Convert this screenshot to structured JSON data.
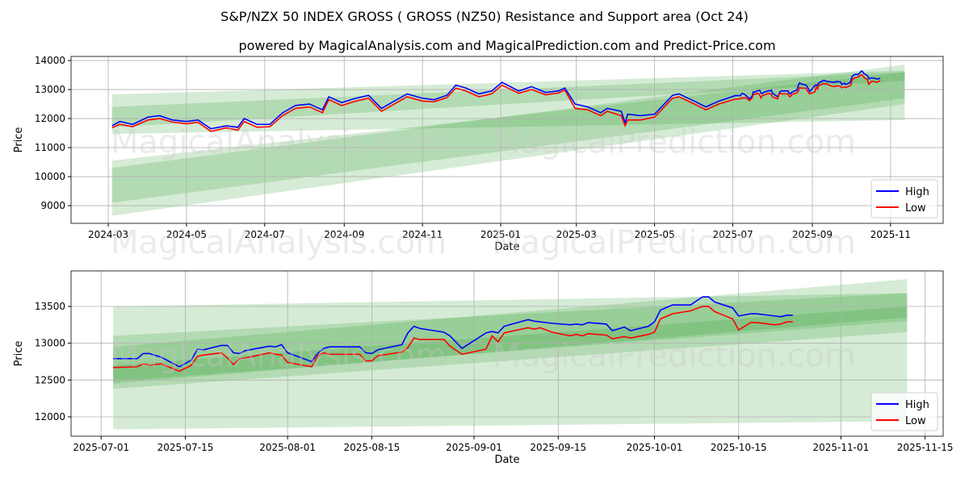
{
  "title": "S&P/NZX 50 INDEX GROSS ( GROSS  (NZ50) Resistance and Support area (Oct 24)",
  "subtitle": "powered by MagicalAnalysis.com and MagicalPrediction.com and Predict-Price.com",
  "watermark": {
    "left": "MagicalAnalysis.com",
    "right": "MagicalPrediction.com"
  },
  "colors": {
    "high": "#0000ff",
    "low": "#ff0000",
    "band": "#2e9a2e"
  },
  "chart_data": {
    "type": "line",
    "legend": {
      "placement": "bottom-right",
      "entries": [
        "High",
        "Low"
      ]
    },
    "series": [
      {
        "date": "2024-03-04",
        "high": 11750,
        "low": 11680
      },
      {
        "date": "2024-03-10",
        "high": 11900,
        "low": 11800
      },
      {
        "date": "2024-03-20",
        "high": 11800,
        "low": 11720
      },
      {
        "date": "2024-04-01",
        "high": 12050,
        "low": 11950
      },
      {
        "date": "2024-04-10",
        "high": 12100,
        "low": 12000
      },
      {
        "date": "2024-04-20",
        "high": 11950,
        "low": 11880
      },
      {
        "date": "2024-05-01",
        "high": 11900,
        "low": 11820
      },
      {
        "date": "2024-05-10",
        "high": 11950,
        "low": 11870
      },
      {
        "date": "2024-05-20",
        "high": 11650,
        "low": 11560
      },
      {
        "date": "2024-06-01",
        "high": 11750,
        "low": 11680
      },
      {
        "date": "2024-06-10",
        "high": 11700,
        "low": 11600
      },
      {
        "date": "2024-06-15",
        "high": 12000,
        "low": 11900
      },
      {
        "date": "2024-06-25",
        "high": 11800,
        "low": 11700
      },
      {
        "date": "2024-07-05",
        "high": 11800,
        "low": 11720
      },
      {
        "date": "2024-07-15",
        "high": 12200,
        "low": 12100
      },
      {
        "date": "2024-07-25",
        "high": 12450,
        "low": 12350
      },
      {
        "date": "2024-08-05",
        "high": 12500,
        "low": 12400
      },
      {
        "date": "2024-08-15",
        "high": 12300,
        "low": 12200
      },
      {
        "date": "2024-08-20",
        "high": 12750,
        "low": 12650
      },
      {
        "date": "2024-08-30",
        "high": 12550,
        "low": 12450
      },
      {
        "date": "2024-09-10",
        "high": 12700,
        "low": 12600
      },
      {
        "date": "2024-09-20",
        "high": 12800,
        "low": 12700
      },
      {
        "date": "2024-09-30",
        "high": 12350,
        "low": 12250
      },
      {
        "date": "2024-10-10",
        "high": 12600,
        "low": 12500
      },
      {
        "date": "2024-10-20",
        "high": 12850,
        "low": 12750
      },
      {
        "date": "2024-11-01",
        "high": 12700,
        "low": 12600
      },
      {
        "date": "2024-11-10",
        "high": 12650,
        "low": 12580
      },
      {
        "date": "2024-11-20",
        "high": 12800,
        "low": 12720
      },
      {
        "date": "2024-11-27",
        "high": 13150,
        "low": 13050
      },
      {
        "date": "2024-12-05",
        "high": 13050,
        "low": 12950
      },
      {
        "date": "2024-12-15",
        "high": 12850,
        "low": 12750
      },
      {
        "date": "2024-12-25",
        "high": 12950,
        "low": 12850
      },
      {
        "date": "2025-01-02",
        "high": 13250,
        "low": 13150
      },
      {
        "date": "2025-01-15",
        "high": 12950,
        "low": 12870
      },
      {
        "date": "2025-01-25",
        "high": 13100,
        "low": 13000
      },
      {
        "date": "2025-02-05",
        "high": 12900,
        "low": 12820
      },
      {
        "date": "2025-02-15",
        "high": 12950,
        "low": 12880
      },
      {
        "date": "2025-02-20",
        "high": 13050,
        "low": 12980
      },
      {
        "date": "2025-02-28",
        "high": 12500,
        "low": 12350
      },
      {
        "date": "2025-03-10",
        "high": 12400,
        "low": 12300
      },
      {
        "date": "2025-03-20",
        "high": 12200,
        "low": 12100
      },
      {
        "date": "2025-03-25",
        "high": 12350,
        "low": 12250
      },
      {
        "date": "2025-04-05",
        "high": 12250,
        "low": 12100
      },
      {
        "date": "2025-04-08",
        "high": 11850,
        "low": 11750
      },
      {
        "date": "2025-04-10",
        "high": 12150,
        "low": 11950
      },
      {
        "date": "2025-04-20",
        "high": 12100,
        "low": 11950
      },
      {
        "date": "2025-05-01",
        "high": 12150,
        "low": 12050
      },
      {
        "date": "2025-05-15",
        "high": 12800,
        "low": 12700
      },
      {
        "date": "2025-05-20",
        "high": 12850,
        "low": 12750
      },
      {
        "date": "2025-06-01",
        "high": 12600,
        "low": 12500
      },
      {
        "date": "2025-06-10",
        "high": 12400,
        "low": 12300
      },
      {
        "date": "2025-06-20",
        "high": 12600,
        "low": 12500
      },
      {
        "date": "2025-07-03",
        "high": 12790,
        "low": 12670
      },
      {
        "date": "2025-07-07",
        "high": 12790,
        "low": 12680
      },
      {
        "date": "2025-07-08",
        "high": 12860,
        "low": 12720
      },
      {
        "date": "2025-07-09",
        "high": 12860,
        "low": 12700
      },
      {
        "date": "2025-07-11",
        "high": 12810,
        "low": 12720
      },
      {
        "date": "2025-07-14",
        "high": 12680,
        "low": 12620
      },
      {
        "date": "2025-07-16",
        "high": 12770,
        "low": 12700
      },
      {
        "date": "2025-07-17",
        "high": 12920,
        "low": 12820
      },
      {
        "date": "2025-07-18",
        "high": 12910,
        "low": 12840
      },
      {
        "date": "2025-07-21",
        "high": 12970,
        "low": 12870
      },
      {
        "date": "2025-07-22",
        "high": 12970,
        "low": 12800
      },
      {
        "date": "2025-07-23",
        "high": 12870,
        "low": 12710
      },
      {
        "date": "2025-07-24",
        "high": 12860,
        "low": 12790
      },
      {
        "date": "2025-07-25",
        "high": 12900,
        "low": 12800
      },
      {
        "date": "2025-07-29",
        "high": 12960,
        "low": 12870
      },
      {
        "date": "2025-07-30",
        "high": 12950,
        "low": 12850
      },
      {
        "date": "2025-07-31",
        "high": 12980,
        "low": 12840
      },
      {
        "date": "2025-08-01",
        "high": 12870,
        "low": 12740
      },
      {
        "date": "2025-08-05",
        "high": 12750,
        "low": 12680
      },
      {
        "date": "2025-08-06",
        "high": 12860,
        "low": 12830
      },
      {
        "date": "2025-08-07",
        "high": 12930,
        "low": 12870
      },
      {
        "date": "2025-08-08",
        "high": 12950,
        "low": 12850
      },
      {
        "date": "2025-08-13",
        "high": 12950,
        "low": 12850
      },
      {
        "date": "2025-08-14",
        "high": 12870,
        "low": 12760
      },
      {
        "date": "2025-08-15",
        "high": 12860,
        "low": 12760
      },
      {
        "date": "2025-08-16",
        "high": 12910,
        "low": 12830
      },
      {
        "date": "2025-08-20",
        "high": 12980,
        "low": 12880
      },
      {
        "date": "2025-08-21",
        "high": 13140,
        "low": 12940
      },
      {
        "date": "2025-08-22",
        "high": 13230,
        "low": 13070
      },
      {
        "date": "2025-08-23",
        "high": 13200,
        "low": 13050
      },
      {
        "date": "2025-08-27",
        "high": 13150,
        "low": 13050
      },
      {
        "date": "2025-08-28",
        "high": 13100,
        "low": 12960
      },
      {
        "date": "2025-08-30",
        "high": 12930,
        "low": 12850
      },
      {
        "date": "2025-09-03",
        "high": 13140,
        "low": 12920
      },
      {
        "date": "2025-09-04",
        "high": 13160,
        "low": 13100
      },
      {
        "date": "2025-09-05",
        "high": 13140,
        "low": 13020
      },
      {
        "date": "2025-09-06",
        "high": 13230,
        "low": 13140
      },
      {
        "date": "2025-09-10",
        "high": 13320,
        "low": 13210
      },
      {
        "date": "2025-09-11",
        "high": 13300,
        "low": 13190
      },
      {
        "date": "2025-09-12",
        "high": 13290,
        "low": 13210
      },
      {
        "date": "2025-09-14",
        "high": 13270,
        "low": 13150
      },
      {
        "date": "2025-09-17",
        "high": 13250,
        "low": 13100
      },
      {
        "date": "2025-09-18",
        "high": 13260,
        "low": 13120
      },
      {
        "date": "2025-09-19",
        "high": 13250,
        "low": 13100
      },
      {
        "date": "2025-09-20",
        "high": 13280,
        "low": 13130
      },
      {
        "date": "2025-09-23",
        "high": 13260,
        "low": 13110
      },
      {
        "date": "2025-09-24",
        "high": 13170,
        "low": 13060
      },
      {
        "date": "2025-09-26",
        "high": 13220,
        "low": 13090
      },
      {
        "date": "2025-09-27",
        "high": 13170,
        "low": 13070
      },
      {
        "date": "2025-09-30",
        "high": 13230,
        "low": 13120
      },
      {
        "date": "2025-10-01",
        "high": 13290,
        "low": 13150
      },
      {
        "date": "2025-10-02",
        "high": 13450,
        "low": 13330
      },
      {
        "date": "2025-10-04",
        "high": 13520,
        "low": 13400
      },
      {
        "date": "2025-10-07",
        "high": 13520,
        "low": 13440
      },
      {
        "date": "2025-10-09",
        "high": 13630,
        "low": 13500
      },
      {
        "date": "2025-10-10",
        "high": 13630,
        "low": 13500
      },
      {
        "date": "2025-10-11",
        "high": 13560,
        "low": 13430
      },
      {
        "date": "2025-10-14",
        "high": 13480,
        "low": 13330
      },
      {
        "date": "2025-10-15",
        "high": 13370,
        "low": 13180
      },
      {
        "date": "2025-10-17",
        "high": 13400,
        "low": 13280
      },
      {
        "date": "2025-10-18",
        "high": 13400,
        "low": 13280
      },
      {
        "date": "2025-10-21",
        "high": 13370,
        "low": 13250
      },
      {
        "date": "2025-10-22",
        "high": 13360,
        "low": 13260
      },
      {
        "date": "2025-10-23",
        "high": 13380,
        "low": 13290
      },
      {
        "date": "2025-10-24",
        "high": 13380,
        "low": 13290
      }
    ],
    "charts": [
      {
        "xlabel": "Date",
        "ylabel": "Price",
        "xlim": [
          "2024-02-01",
          "2025-12-12"
        ],
        "ylim": [
          8390,
          14140
        ],
        "xticks": [
          "2024-03",
          "2024-05",
          "2024-07",
          "2024-09",
          "2024-11",
          "2025-01",
          "2025-03",
          "2025-05",
          "2025-07",
          "2025-09",
          "2025-11"
        ],
        "yticks": [
          9000,
          10000,
          11000,
          12000,
          13000,
          14000
        ],
        "grid": true,
        "bands": [
          {
            "start": "2024-03-04",
            "end": "2025-11-12",
            "start_top": 12830,
            "start_bottom": 11470,
            "end_top": 13650,
            "end_bottom": 11950
          },
          {
            "start": "2024-03-04",
            "end": "2025-11-12",
            "start_top": 12400,
            "start_bottom": 11700,
            "end_top": 13600,
            "end_bottom": 13300
          },
          {
            "start": "2024-03-04",
            "end": "2025-11-12",
            "start_top": 10550,
            "start_bottom": 9100,
            "end_top": 13600,
            "end_bottom": 12700
          },
          {
            "start": "2024-03-04",
            "end": "2025-11-12",
            "start_top": 10300,
            "start_bottom": 8650,
            "end_top": 13860,
            "end_bottom": 12500
          }
        ]
      },
      {
        "xlabel": "Date",
        "ylabel": "Price",
        "xlim": [
          "2025-06-26",
          "2025-11-18"
        ],
        "ylim": [
          11737,
          13982
        ],
        "xticks": [
          "2025-07-01",
          "2025-07-15",
          "2025-08-01",
          "2025-08-15",
          "2025-09-01",
          "2025-09-15",
          "2025-10-01",
          "2025-10-15",
          "2025-11-01",
          "2025-11-15"
        ],
        "yticks": [
          12000,
          12500,
          13000,
          13500
        ],
        "grid": true,
        "bands": [
          {
            "start": "2025-07-03",
            "end": "2025-11-12",
            "start_top": 13500,
            "start_bottom": 11830,
            "end_top": 13680,
            "end_bottom": 11940
          },
          {
            "start": "2025-07-03",
            "end": "2025-11-12",
            "start_top": 13100,
            "start_bottom": 12480,
            "end_top": 13680,
            "end_bottom": 13300
          },
          {
            "start": "2025-07-03",
            "end": "2025-11-12",
            "start_top": 12950,
            "start_bottom": 12380,
            "end_top": 13870,
            "end_bottom": 13150
          },
          {
            "start": "2025-07-03",
            "end": "2025-11-12",
            "start_top": 12700,
            "start_bottom": 12450,
            "end_top": 13500,
            "end_bottom": 13350
          }
        ]
      }
    ]
  }
}
